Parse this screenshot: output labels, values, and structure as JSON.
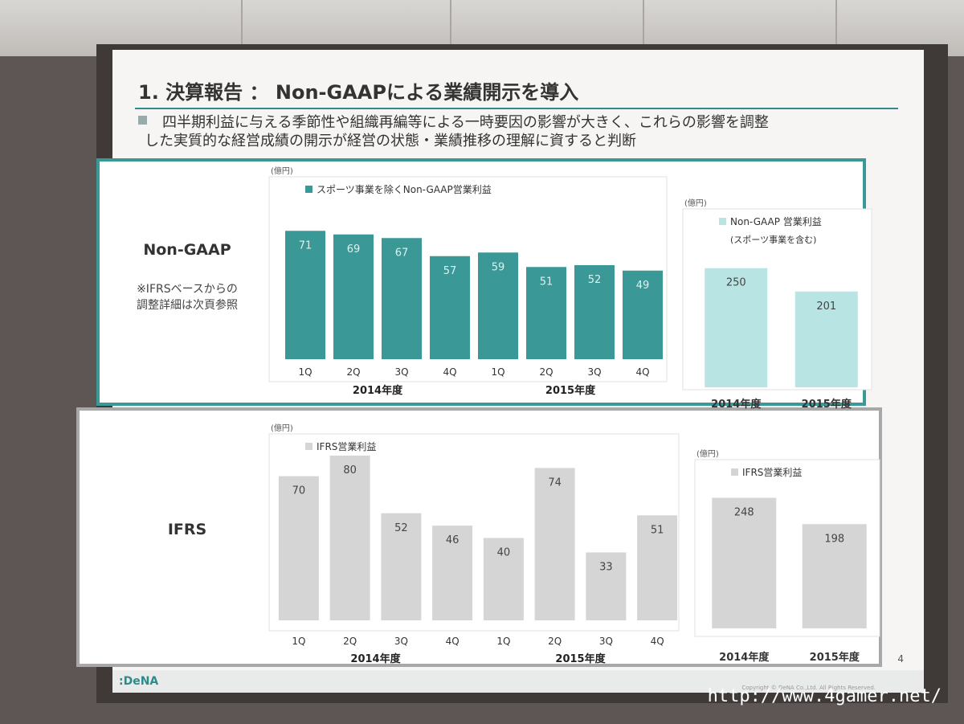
{
  "slide": {
    "title": "1. 決算報告 ： Non-GAAPによる業績開示を導入",
    "bullet_lines": [
      "四半期利益に与える季節性や組織再編等による一時要因の影響が大きく、これらの影響を調整",
      "した実質的な経営成績の開示が経営の状態・業績推移の理解に資すると判断"
    ],
    "nongaap_label": "Non-GAAP",
    "nongaap_note_1": "※IFRSベースからの",
    "nongaap_note_2": "調整詳細は次頁参照",
    "ifrs_label": "IFRS",
    "page_number": "4",
    "logo": ":DeNA",
    "copyright": "Copyright © DeNA Co.,Ltd. All Rights Reserved.",
    "watermark": "http://www.4gamer.net/"
  },
  "colors": {
    "teal": "#3a9896",
    "teal_light": "#b9e4e4",
    "grey_bar": "#d5d5d5",
    "border_teal": "#3a9896",
    "border_grey": "#a8a8a8"
  },
  "chart_data": [
    {
      "type": "bar",
      "unit": "(億円)",
      "legend": "スポーツ事業を除くNon-GAAP営業利益",
      "categories": [
        "1Q",
        "2Q",
        "3Q",
        "4Q",
        "1Q",
        "2Q",
        "3Q",
        "4Q"
      ],
      "groups": [
        "2014年度",
        "2015年度"
      ],
      "series": [
        {
          "name": "スポーツ事業を除くNon-GAAP営業利益",
          "values": [
            71,
            69,
            67,
            57,
            59,
            51,
            52,
            49
          ]
        }
      ],
      "ylim": [
        0,
        80
      ]
    },
    {
      "type": "bar",
      "unit": "(億円)",
      "legend": "Non-GAAP 営業利益",
      "legend_sub": "(スポーツ事業を含む)",
      "categories": [
        "2014年度",
        "2015年度"
      ],
      "series": [
        {
          "name": "Non-GAAP 営業利益",
          "values": [
            250,
            201
          ]
        }
      ],
      "ylim": [
        0,
        290
      ]
    },
    {
      "type": "bar",
      "unit": "(億円)",
      "legend": "IFRS営業利益",
      "categories": [
        "1Q",
        "2Q",
        "3Q",
        "4Q",
        "1Q",
        "2Q",
        "3Q",
        "4Q"
      ],
      "groups": [
        "2014年度",
        "2015年度"
      ],
      "series": [
        {
          "name": "IFRS営業利益",
          "values": [
            70,
            80,
            52,
            46,
            40,
            74,
            33,
            51
          ]
        }
      ],
      "ylim": [
        0,
        80
      ]
    },
    {
      "type": "bar",
      "unit": "(億円)",
      "legend": "IFRS営業利益",
      "categories": [
        "2014年度",
        "2015年度"
      ],
      "series": [
        {
          "name": "IFRS営業利益",
          "values": [
            248,
            198
          ]
        }
      ],
      "ylim": [
        0,
        290
      ]
    }
  ]
}
